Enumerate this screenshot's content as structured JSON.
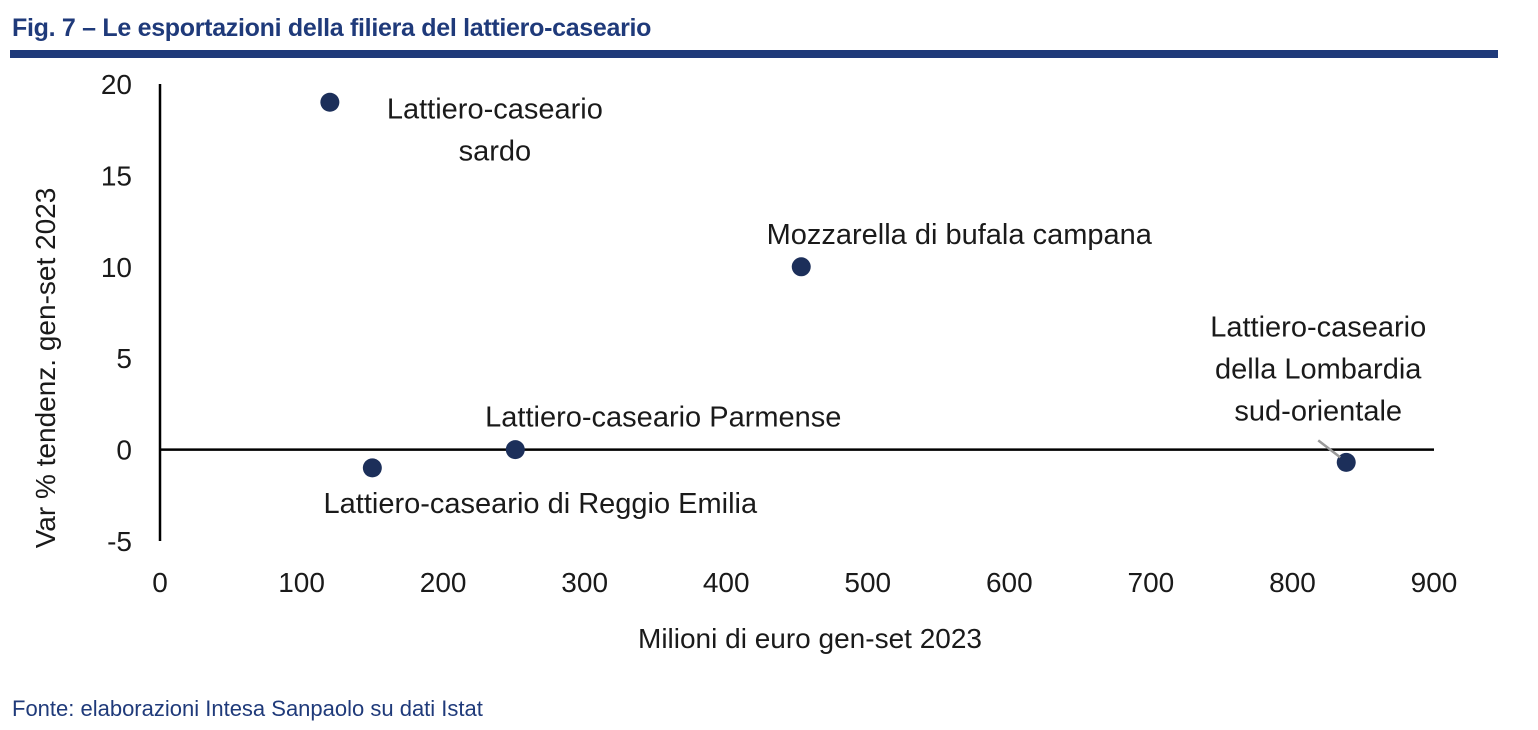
{
  "header": {
    "title": "Fig. 7 – Le esportazioni della filiera del lattiero-caseario"
  },
  "footer": {
    "source": "Fonte: elaborazioni Intesa Sanpaolo su dati Istat"
  },
  "colors": {
    "brand": "#1f3a7a",
    "marker": "#1c2f5a",
    "axis": "#000000"
  },
  "chart_data": {
    "type": "scatter",
    "title": "Fig. 7 – Le esportazioni della filiera del lattiero-caseario",
    "xlabel": "Milioni di euro gen-set 2023",
    "ylabel": "Var % tendenz. gen-set 2023",
    "xlim": [
      0,
      900
    ],
    "ylim": [
      -5,
      20
    ],
    "xticks": [
      0,
      100,
      200,
      300,
      400,
      500,
      600,
      700,
      800,
      900
    ],
    "yticks": [
      -5,
      0,
      5,
      10,
      15,
      20
    ],
    "grid": false,
    "legend": "none",
    "points": [
      {
        "label": [
          "Lattiero-caseario",
          "sardo"
        ],
        "x": 120,
        "y": 19.0,
        "label_pos": "right"
      },
      {
        "label": [
          "Mozzarella di bufala campana"
        ],
        "x": 453,
        "y": 10.0,
        "label_pos": "above"
      },
      {
        "label": [
          "Lattiero-caseario Parmense"
        ],
        "x": 251,
        "y": 0.0,
        "label_pos": "above"
      },
      {
        "label": [
          "Lattiero-caseario di Reggio Emilia"
        ],
        "x": 150,
        "y": -1.0,
        "label_pos": "below"
      },
      {
        "label": [
          "Lattiero-caseario",
          "della Lombardia",
          "sud-orientale"
        ],
        "x": 838,
        "y": -0.7,
        "label_pos": "above-left"
      }
    ]
  }
}
